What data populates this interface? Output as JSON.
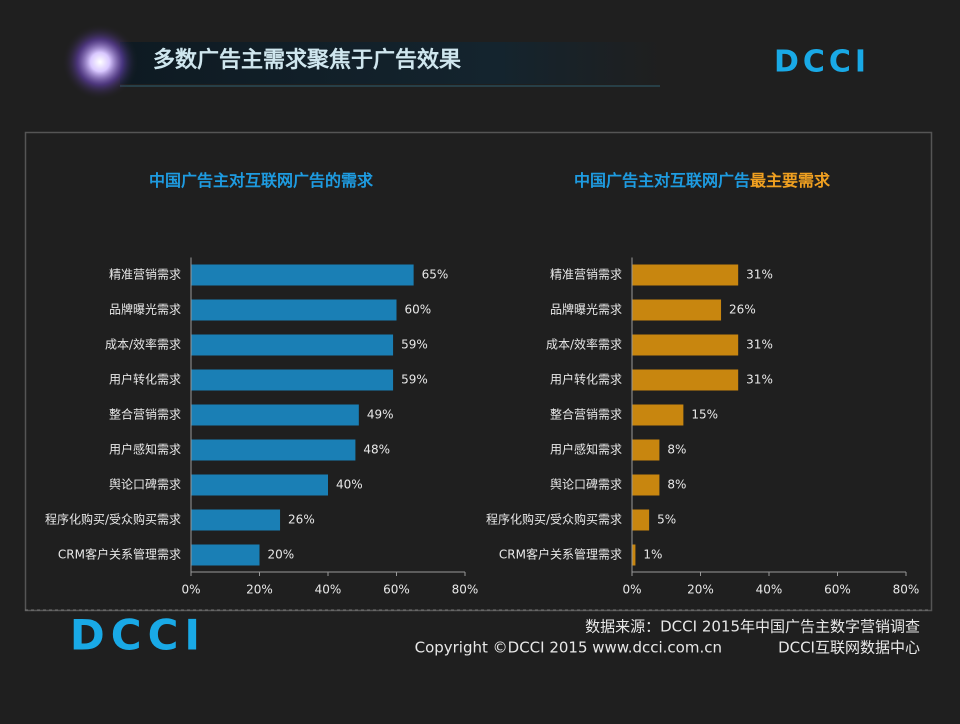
{
  "header": {
    "title": "多数广告主需求聚焦于广告效果",
    "logo": "DCCI"
  },
  "chart_data": [
    {
      "type": "bar",
      "orientation": "horizontal",
      "title": [
        "中国广告主对互联网广告的需求"
      ],
      "categories": [
        "精准营销需求",
        "品牌曝光需求",
        "成本/效率需求",
        "用户转化需求",
        "整合营销需求",
        "用户感知需求",
        "舆论口碑需求",
        "程序化购买/受众购买需求",
        "CRM客户关系管理需求"
      ],
      "values": [
        65,
        60,
        59,
        59,
        49,
        48,
        40,
        26,
        20
      ],
      "value_labels": [
        "65%",
        "60%",
        "59%",
        "59%",
        "49%",
        "48%",
        "40%",
        "26%",
        "20%"
      ],
      "color": "#1a7fb5",
      "xlim": [
        0,
        80
      ],
      "xticks": [
        {
          "value": 0,
          "label": "0%"
        },
        {
          "value": 20,
          "label": "20%"
        },
        {
          "value": 40,
          "label": "40%"
        },
        {
          "value": 60,
          "label": "60%"
        },
        {
          "value": 80,
          "label": "80%"
        }
      ],
      "grid": false
    },
    {
      "type": "bar",
      "orientation": "horizontal",
      "title": [
        "中国广告主对互联网广告",
        "最主要需求"
      ],
      "categories": [
        "精准营销需求",
        "品牌曝光需求",
        "成本/效率需求",
        "用户转化需求",
        "整合营销需求",
        "用户感知需求",
        "舆论口碑需求",
        "程序化购买/受众购买需求",
        "CRM客户关系管理需求"
      ],
      "values": [
        31,
        26,
        31,
        31,
        15,
        8,
        8,
        5,
        1
      ],
      "value_labels": [
        "31%",
        "26%",
        "31%",
        "31%",
        "15%",
        "8%",
        "8%",
        "5%",
        "1%"
      ],
      "color": "#c8860f",
      "xlim": [
        0,
        80
      ],
      "xticks": [
        {
          "value": 0,
          "label": "0%"
        },
        {
          "value": 20,
          "label": "20%"
        },
        {
          "value": 40,
          "label": "40%"
        },
        {
          "value": 60,
          "label": "60%"
        },
        {
          "value": 80,
          "label": "80%"
        }
      ],
      "grid": false
    }
  ],
  "footer": {
    "source": "数据来源：DCCI  2015年中国广告主数字营销调查",
    "copyright": "Copyright ©DCCI 2015 www.dcci.com.cn",
    "org": "DCCI互联网数据中心"
  }
}
